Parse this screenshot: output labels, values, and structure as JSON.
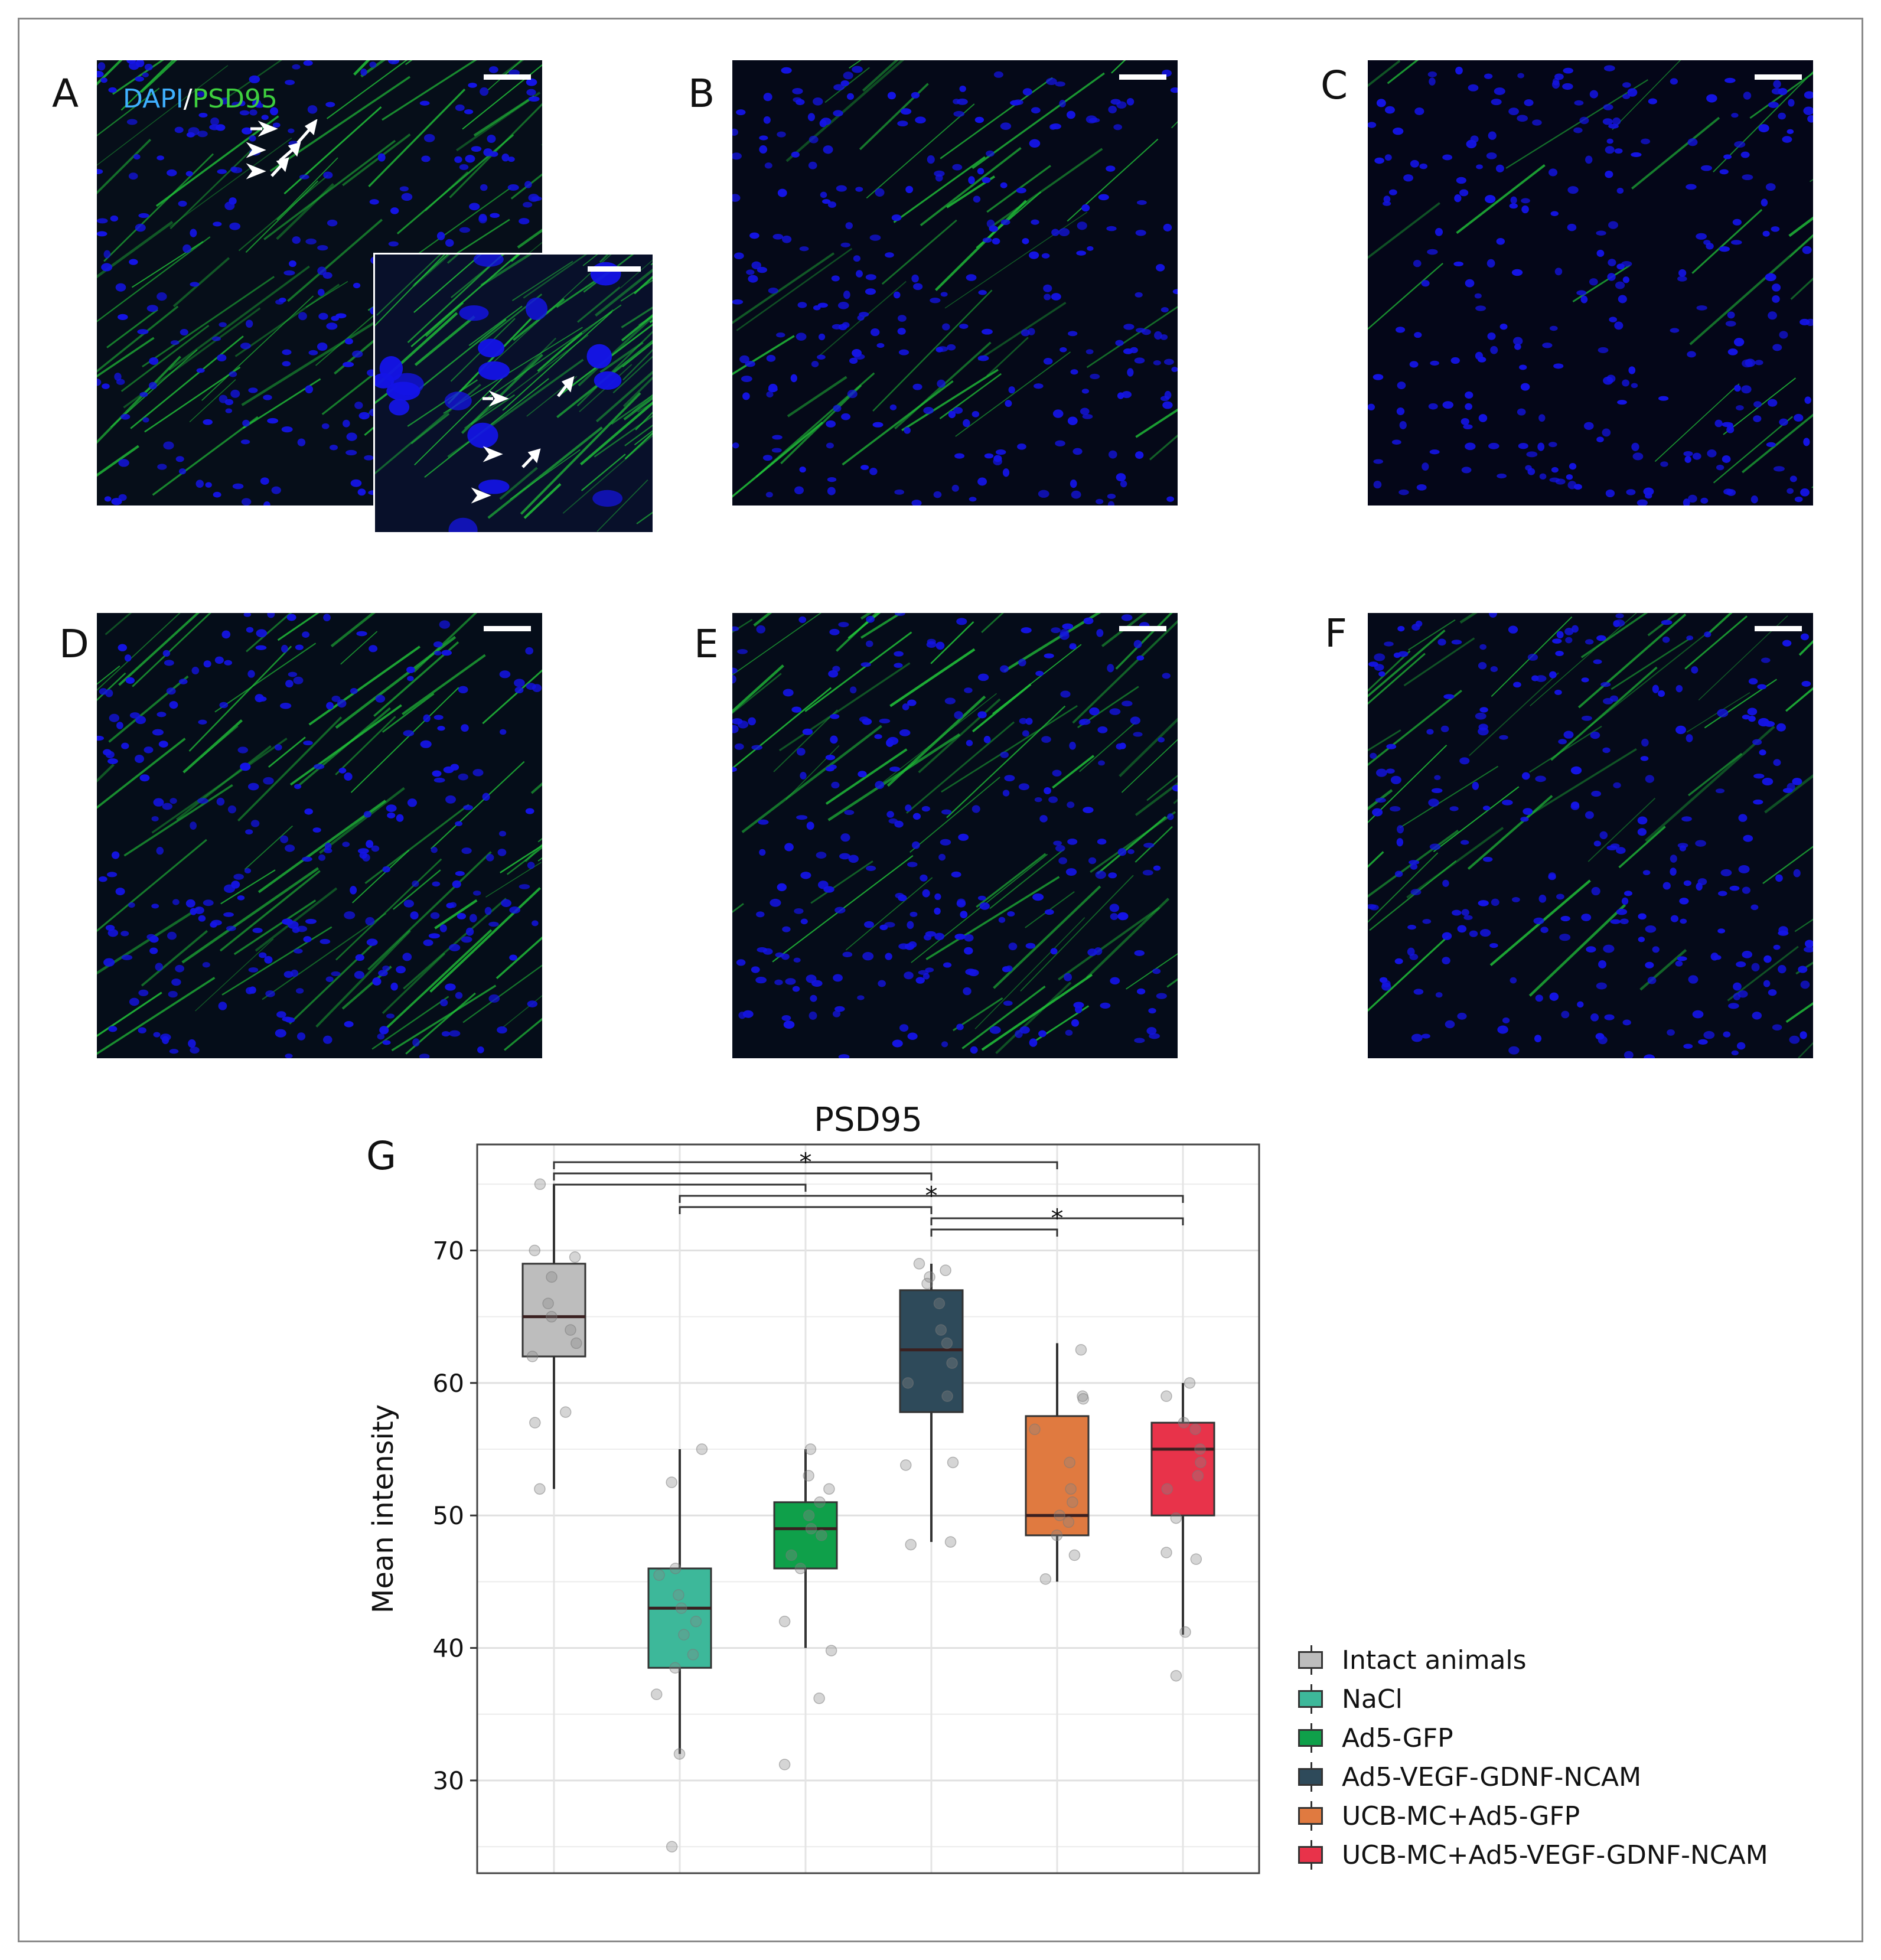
{
  "panels": {
    "A": {
      "label": "A",
      "stain_dapi": "DAPI",
      "stain_sep": "/",
      "stain_psd": "PSD95",
      "fiber_density": 1.0
    },
    "B": {
      "label": "B",
      "fiber_density": 0.45
    },
    "C": {
      "label": "C",
      "fiber_density": 0.25
    },
    "D": {
      "label": "D",
      "fiber_density": 0.9
    },
    "E": {
      "label": "E",
      "fiber_density": 0.8
    },
    "F": {
      "label": "F",
      "fiber_density": 0.6
    },
    "G": {
      "label": "G"
    }
  },
  "colors": {
    "dapi": "#1414e6",
    "psd95": "#22c83a",
    "background": "#050518"
  },
  "chart_data": {
    "type": "box",
    "title": "PSD95",
    "ylabel": "Mean intensity",
    "xlabel": "",
    "ylim": [
      23,
      78
    ],
    "yticks": [
      30,
      40,
      50,
      60,
      70
    ],
    "grid": true,
    "legend_position": "right",
    "series": [
      {
        "name": "Intact animals",
        "color": "#bdbdbd",
        "min": 52,
        "q1": 62,
        "median": 65,
        "q3": 69,
        "max": 75,
        "points": [
          75,
          70,
          69.5,
          68,
          66,
          65,
          64,
          63,
          62,
          57.8,
          57,
          52
        ]
      },
      {
        "name": "NaCl",
        "color": "#3db89a",
        "min": 32,
        "q1": 38.5,
        "median": 43,
        "q3": 46,
        "max": 55,
        "points": [
          55,
          52.5,
          46,
          45.5,
          44,
          43,
          42,
          41,
          39.5,
          38.5,
          36.5,
          32,
          25
        ]
      },
      {
        "name": "Ad5-GFP",
        "color": "#0fa04a",
        "min": 40,
        "q1": 46,
        "median": 49,
        "q3": 51,
        "max": 55,
        "points": [
          55,
          53,
          52,
          51,
          50,
          49,
          48.5,
          47,
          46,
          42,
          39.8,
          36.2,
          31.2
        ]
      },
      {
        "name": "Ad5-VEGF-GDNF-NCAM",
        "color": "#2e4a5a",
        "min": 48,
        "q1": 57.8,
        "median": 62.5,
        "q3": 67,
        "max": 69,
        "points": [
          69,
          68.5,
          68,
          67.5,
          66,
          64,
          63,
          61.5,
          60,
          59,
          54,
          53.8,
          48,
          47.8
        ]
      },
      {
        "name": "UCB-MC+Ad5-GFP",
        "color": "#e07a40",
        "min": 45,
        "q1": 48.5,
        "median": 50,
        "q3": 57.5,
        "max": 63,
        "points": [
          62.5,
          59,
          58.8,
          56.5,
          54,
          52,
          51,
          50,
          49.5,
          48.5,
          47,
          45.2
        ]
      },
      {
        "name": "UCB-MC+Ad5-VEGF-GDNF-NCAM",
        "color": "#e8334a",
        "min": 41,
        "q1": 50,
        "median": 55,
        "q3": 57,
        "max": 60,
        "points": [
          60,
          59,
          57,
          56.5,
          55,
          54,
          53,
          52,
          49.8,
          47.2,
          46.7,
          41.2,
          37.9
        ]
      }
    ],
    "annotations": [
      {
        "text": "*",
        "groups": [
          0,
          4
        ]
      },
      {
        "text": "*",
        "groups": [
          0,
          3
        ]
      },
      {
        "text": "*",
        "groups": [
          0,
          2
        ]
      },
      {
        "text": "*",
        "groups": [
          1,
          5
        ]
      },
      {
        "text": "*",
        "groups": [
          1,
          3
        ]
      },
      {
        "text": "*",
        "groups": [
          3,
          5
        ]
      },
      {
        "text": "*",
        "groups": [
          3,
          4
        ]
      }
    ]
  }
}
